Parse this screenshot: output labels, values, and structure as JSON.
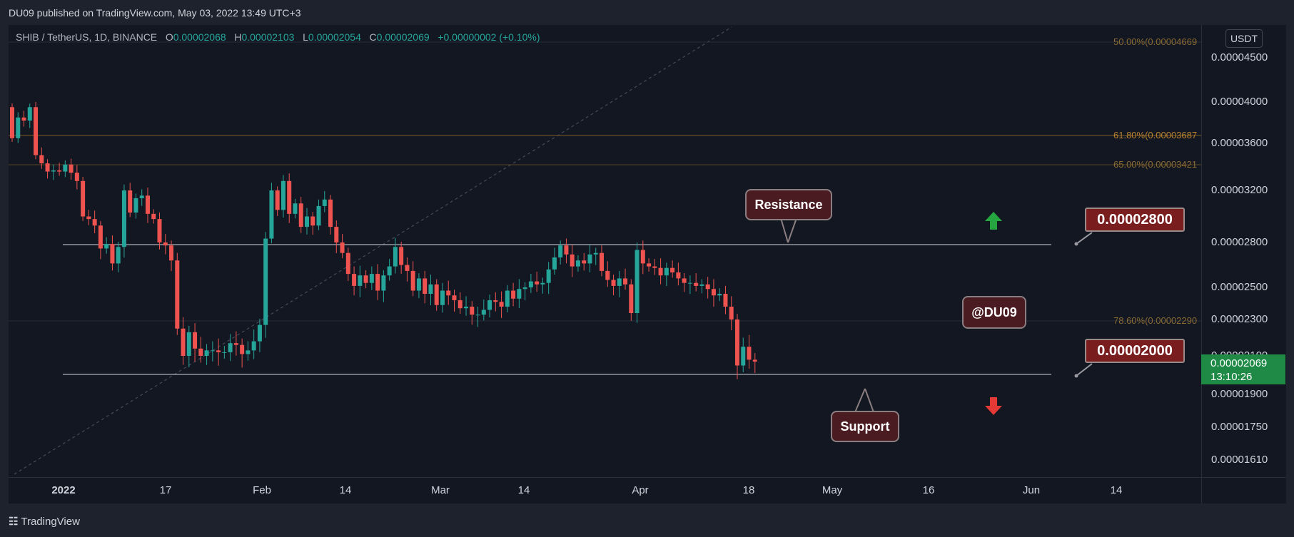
{
  "header": {
    "publish_line": "DU09 published on TradingView.com, May 03, 2022 13:49 UTC+3"
  },
  "legend": {
    "symbol": "SHIB / TetherUS, 1D, BINANCE",
    "o_label": "O",
    "o": "0.00002068",
    "h_label": "H",
    "h": "0.00002103",
    "l_label": "L",
    "l": "0.00002054",
    "c_label": "C",
    "c": "0.00002069",
    "change": "+0.00000002 (+0.10%)"
  },
  "unit": "USDT",
  "last_price": {
    "value": "0.00002069",
    "countdown": "13:10:26",
    "color": "#1e8a46"
  },
  "annotations": {
    "resistance": "Resistance",
    "support": "Support",
    "watermark": "@DU09",
    "resistance_price": "0.00002800",
    "support_price": "0.00002000"
  },
  "fib_labels": {
    "f50": "50.00%(0.00004669",
    "f618": "61.80%(0.00003687",
    "f65": "65.00%(0.00003421",
    "f786": "78.60%(0.00002290"
  },
  "footer": {
    "brand": "TradingView"
  },
  "colors": {
    "up": "#26a69a",
    "down": "#ef5350",
    "background": "#131722",
    "fib": "#8a6a32"
  },
  "chart_data": {
    "type": "candlestick",
    "title": "SHIB / TetherUS, 1D, BINANCE",
    "ylabel": "USDT",
    "ylim": [
      1.55e-05,
      4.75e-05
    ],
    "y_ticks": [
      "0.00004500",
      "0.00004000",
      "0.00003600",
      "0.00003200",
      "0.00002800",
      "0.00002500",
      "0.00002300",
      "0.00002100",
      "0.00001900",
      "0.00001750",
      "0.00001610"
    ],
    "x_ticks": [
      "2022",
      "17",
      "Feb",
      "14",
      "Mar",
      "14",
      "Apr",
      "18",
      "May",
      "16",
      "Jun",
      "14"
    ],
    "horizontal_levels": {
      "resistance": 2.8e-05,
      "support": 2e-05
    },
    "fib_levels": [
      {
        "label": "50.00%",
        "value": 4.669e-05
      },
      {
        "label": "61.80%",
        "value": 3.687e-05
      },
      {
        "label": "65.00%",
        "value": 3.421e-05
      },
      {
        "label": "78.60%",
        "value": 2.29e-05
      }
    ],
    "candles": [
      [
        39.5,
        36.5
      ],
      [
        36.5,
        38.5
      ],
      [
        38.5,
        38.2
      ],
      [
        38.2,
        39.5
      ],
      [
        39.5,
        35.0
      ],
      [
        35.0,
        34.3
      ],
      [
        34.3,
        33.6
      ],
      [
        33.6,
        33.7
      ],
      [
        33.7,
        33.6
      ],
      [
        33.6,
        34.2
      ],
      [
        34.2,
        33.5
      ],
      [
        33.5,
        32.8
      ],
      [
        32.8,
        30.0
      ],
      [
        30.0,
        29.8
      ],
      [
        29.8,
        29.3
      ],
      [
        29.3,
        27.6
      ],
      [
        27.6,
        27.9
      ],
      [
        27.9,
        26.6
      ],
      [
        26.6,
        27.7
      ],
      [
        27.7,
        32.0
      ],
      [
        32.0,
        30.3
      ],
      [
        30.3,
        31.4
      ],
      [
        31.4,
        31.6
      ],
      [
        31.6,
        30.2
      ],
      [
        30.2,
        29.8
      ],
      [
        29.8,
        28.0
      ],
      [
        28.0,
        27.8
      ],
      [
        27.8,
        26.8
      ],
      [
        26.8,
        22.5
      ],
      [
        22.5,
        21.0
      ],
      [
        21.0,
        22.3
      ],
      [
        22.3,
        21.4
      ],
      [
        21.4,
        21.0
      ],
      [
        21.0,
        21.3
      ],
      [
        21.3,
        21.3
      ],
      [
        21.3,
        21.2
      ],
      [
        21.2,
        21.2
      ],
      [
        21.2,
        21.7
      ],
      [
        21.7,
        21.6
      ],
      [
        21.6,
        21.1
      ],
      [
        21.1,
        21.3
      ],
      [
        21.3,
        21.8
      ],
      [
        21.8,
        22.7
      ],
      [
        22.7,
        28.3
      ],
      [
        28.3,
        32.0
      ],
      [
        32.0,
        30.5
      ],
      [
        30.5,
        32.8
      ],
      [
        32.8,
        30.2
      ],
      [
        30.2,
        31.0
      ],
      [
        31.0,
        29.2
      ],
      [
        29.2,
        30.0
      ],
      [
        30.0,
        29.3
      ],
      [
        29.3,
        30.8
      ],
      [
        30.8,
        31.3
      ],
      [
        31.3,
        29.2
      ],
      [
        29.2,
        28.0
      ],
      [
        28.0,
        27.3
      ],
      [
        27.3,
        25.9
      ],
      [
        25.9,
        25.1
      ],
      [
        25.1,
        25.8
      ],
      [
        25.8,
        25.3
      ],
      [
        25.3,
        25.9
      ],
      [
        25.9,
        24.8
      ],
      [
        24.8,
        25.8
      ],
      [
        25.8,
        26.4
      ],
      [
        26.4,
        27.7
      ],
      [
        27.7,
        26.5
      ],
      [
        26.5,
        26.1
      ],
      [
        26.1,
        24.8
      ],
      [
        24.8,
        25.6
      ],
      [
        25.6,
        24.6
      ],
      [
        24.6,
        25.2
      ],
      [
        25.2,
        23.9
      ],
      [
        23.9,
        24.8
      ],
      [
        24.8,
        24.5
      ],
      [
        24.5,
        24.2
      ],
      [
        24.2,
        23.7
      ],
      [
        23.7,
        23.8
      ],
      [
        23.8,
        23.3
      ],
      [
        23.3,
        23.3
      ],
      [
        23.3,
        23.6
      ],
      [
        23.6,
        24.2
      ],
      [
        24.2,
        24.1
      ],
      [
        24.1,
        23.8
      ],
      [
        23.8,
        24.8
      ],
      [
        24.8,
        24.3
      ],
      [
        24.3,
        24.9
      ],
      [
        24.9,
        25.0
      ],
      [
        25.0,
        25.4
      ],
      [
        25.4,
        25.2
      ],
      [
        25.2,
        25.3
      ],
      [
        25.3,
        26.2
      ],
      [
        26.2,
        27.0
      ],
      [
        27.0,
        27.8
      ],
      [
        27.8,
        27.2
      ],
      [
        27.2,
        26.4
      ],
      [
        26.4,
        26.8
      ],
      [
        26.8,
        26.6
      ],
      [
        26.6,
        27.2
      ],
      [
        27.2,
        27.3
      ],
      [
        27.3,
        26.1
      ],
      [
        26.1,
        25.5
      ],
      [
        25.5,
        25.1
      ],
      [
        25.1,
        25.6
      ],
      [
        25.6,
        25.2
      ],
      [
        25.2,
        23.4
      ],
      [
        23.4,
        27.5
      ],
      [
        27.5,
        26.6
      ],
      [
        26.6,
        26.4
      ],
      [
        26.4,
        26.3
      ],
      [
        26.3,
        25.8
      ],
      [
        25.8,
        26.3
      ],
      [
        26.3,
        26.0
      ],
      [
        26.0,
        25.6
      ],
      [
        25.6,
        25.3
      ],
      [
        25.3,
        25.3
      ],
      [
        25.3,
        25.1
      ],
      [
        25.1,
        25.2
      ],
      [
        25.2,
        24.9
      ],
      [
        24.9,
        24.5
      ],
      [
        24.5,
        24.6
      ],
      [
        24.6,
        23.8
      ],
      [
        23.8,
        23.0
      ],
      [
        23.0,
        20.5
      ],
      [
        20.5,
        21.5
      ],
      [
        21.5,
        20.8
      ],
      [
        20.8,
        20.7
      ]
    ]
  }
}
